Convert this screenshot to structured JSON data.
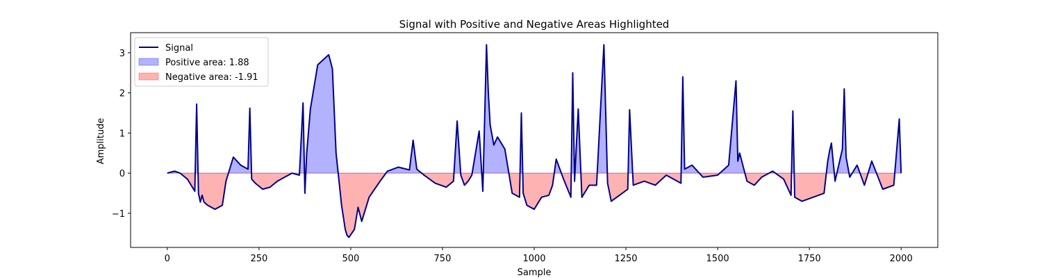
{
  "chart_data": {
    "type": "area",
    "title": "Signal with Positive and Negative Areas Highlighted",
    "xlabel": "Sample",
    "ylabel": "Amplitude",
    "xlim": [
      -100,
      2100
    ],
    "ylim": [
      -1.85,
      3.5
    ],
    "xticks": [
      0,
      250,
      500,
      750,
      1000,
      1250,
      1500,
      1750,
      2000
    ],
    "yticks": [
      -1,
      0,
      1,
      2,
      3
    ],
    "legend_position": "top-left",
    "colors": {
      "signal": "#00008b",
      "positive_fill": "#0000ff",
      "negative_fill": "#ff0000",
      "axis": "#000000"
    },
    "series": [
      {
        "name": "Signal",
        "style": "line",
        "x": [
          0,
          20,
          35,
          55,
          75,
          80,
          85,
          90,
          95,
          100,
          110,
          130,
          150,
          160,
          170,
          180,
          200,
          220,
          225,
          230,
          240,
          260,
          280,
          300,
          320,
          340,
          360,
          370,
          375,
          380,
          390,
          410,
          440,
          450,
          460,
          475,
          485,
          490,
          495,
          510,
          520,
          530,
          550,
          580,
          600,
          630,
          660,
          670,
          680,
          700,
          730,
          760,
          780,
          790,
          800,
          810,
          820,
          830,
          850,
          860,
          870,
          875,
          880,
          890,
          900,
          920,
          940,
          960,
          965,
          970,
          980,
          1000,
          1020,
          1040,
          1050,
          1060,
          1080,
          1100,
          1105,
          1110,
          1120,
          1130,
          1150,
          1170,
          1190,
          1200,
          1210,
          1240,
          1255,
          1260,
          1270,
          1300,
          1330,
          1360,
          1400,
          1405,
          1410,
          1430,
          1460,
          1500,
          1530,
          1550,
          1555,
          1560,
          1580,
          1600,
          1620,
          1650,
          1680,
          1700,
          1705,
          1710,
          1730,
          1760,
          1790,
          1800,
          1805,
          1810,
          1820,
          1840,
          1845,
          1850,
          1860,
          1880,
          1900,
          1920,
          1950,
          1980,
          1995,
          2000
        ],
        "y": [
          0.0,
          0.05,
          0.0,
          -0.15,
          -0.45,
          1.72,
          -0.5,
          -0.72,
          -0.55,
          -0.72,
          -0.8,
          -0.9,
          -0.8,
          -0.2,
          0.1,
          0.4,
          0.2,
          0.1,
          1.62,
          -0.15,
          -0.25,
          -0.4,
          -0.35,
          -0.2,
          -0.1,
          0.0,
          -0.05,
          1.75,
          -0.5,
          0.5,
          1.6,
          2.7,
          2.95,
          2.6,
          0.5,
          -0.8,
          -1.4,
          -1.55,
          -1.6,
          -1.4,
          -0.85,
          -1.2,
          -0.6,
          -0.2,
          0.05,
          0.15,
          0.08,
          0.82,
          0.1,
          -0.05,
          -0.25,
          -0.35,
          -0.2,
          1.3,
          -0.05,
          -0.3,
          -0.2,
          -0.05,
          1.05,
          -0.45,
          3.2,
          2.0,
          1.2,
          0.7,
          0.9,
          0.6,
          -0.5,
          -0.6,
          1.5,
          -0.5,
          -0.8,
          -0.9,
          -0.6,
          -0.55,
          -0.3,
          0.35,
          -0.15,
          -0.6,
          2.5,
          -0.2,
          1.6,
          -0.6,
          -0.3,
          -0.3,
          3.2,
          -0.25,
          -0.7,
          -0.5,
          -0.4,
          1.58,
          -0.3,
          -0.2,
          -0.3,
          -0.05,
          -0.25,
          2.4,
          0.1,
          0.2,
          -0.1,
          -0.05,
          0.2,
          2.3,
          0.3,
          0.5,
          -0.2,
          -0.3,
          -0.1,
          0.05,
          -0.15,
          -0.55,
          1.55,
          -0.6,
          -0.7,
          -0.6,
          -0.5,
          0.3,
          0.55,
          0.75,
          -0.2,
          0.6,
          2.1,
          0.4,
          -0.1,
          0.2,
          -0.3,
          0.3,
          -0.4,
          -0.3,
          1.35,
          0.0
        ]
      },
      {
        "name": "Positive area: 1.88",
        "style": "fill-above-zero"
      },
      {
        "name": "Negative area: -1.91",
        "style": "fill-below-zero"
      }
    ]
  }
}
